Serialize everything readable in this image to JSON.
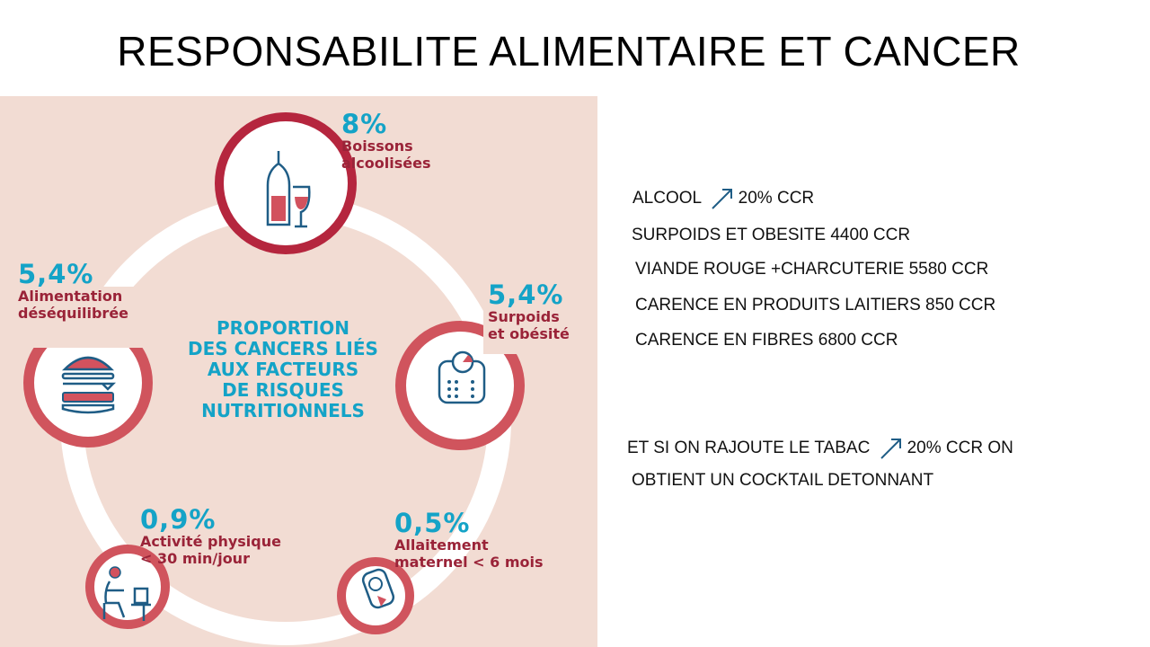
{
  "title": "RESPONSABILITE ALIMENTAIRE ET CANCER",
  "infographic": {
    "center_lines": [
      "PROPORTION",
      "DES CANCERS LIÉS",
      "AUX FACTEURS",
      "DE RISQUES",
      "NUTRITIONNELS"
    ],
    "items": [
      {
        "pct": "8%",
        "label1": "Boissons",
        "label2": "alcoolisées",
        "icon": "wine-bottle-glass-icon"
      },
      {
        "pct": "5,4%",
        "label1": "Surpoids",
        "label2": "et obésité",
        "icon": "scale-icon"
      },
      {
        "pct": "0,5%",
        "label1": "Allaitement",
        "label2": "maternel < 6 mois",
        "icon": "baby-icon"
      },
      {
        "pct": "0,9%",
        "label1": "Activité physique",
        "label2": "< 30 min/jour",
        "icon": "person-computer-icon"
      },
      {
        "pct": "5,4%",
        "label1": "Alimentation",
        "label2": "déséquilibrée",
        "icon": "burger-icon"
      }
    ]
  },
  "right": {
    "line1_pre": "ALCOOL",
    "line1_post": "20% CCR",
    "line2": "SURPOIDS ET OBESITE 4400 CCR",
    "line3": "VIANDE ROUGE  +CHARCUTERIE 5580 CCR",
    "line4": "CARENCE EN PRODUITS LAITIERS 850 CCR",
    "line5": "CARENCE EN FIBRES  6800 CCR",
    "line6_pre": "ET SI ON RAJOUTE LE TABAC",
    "line6_post": "20% CCR  ON",
    "line7": "OBTIENT UN COCKTAIL DETONNANT"
  },
  "colors": {
    "accent_blue": "#14a3c7",
    "accent_red": "#b5263e",
    "panel_bg": "#f2dcd3",
    "arrow": "#1f5d86"
  }
}
